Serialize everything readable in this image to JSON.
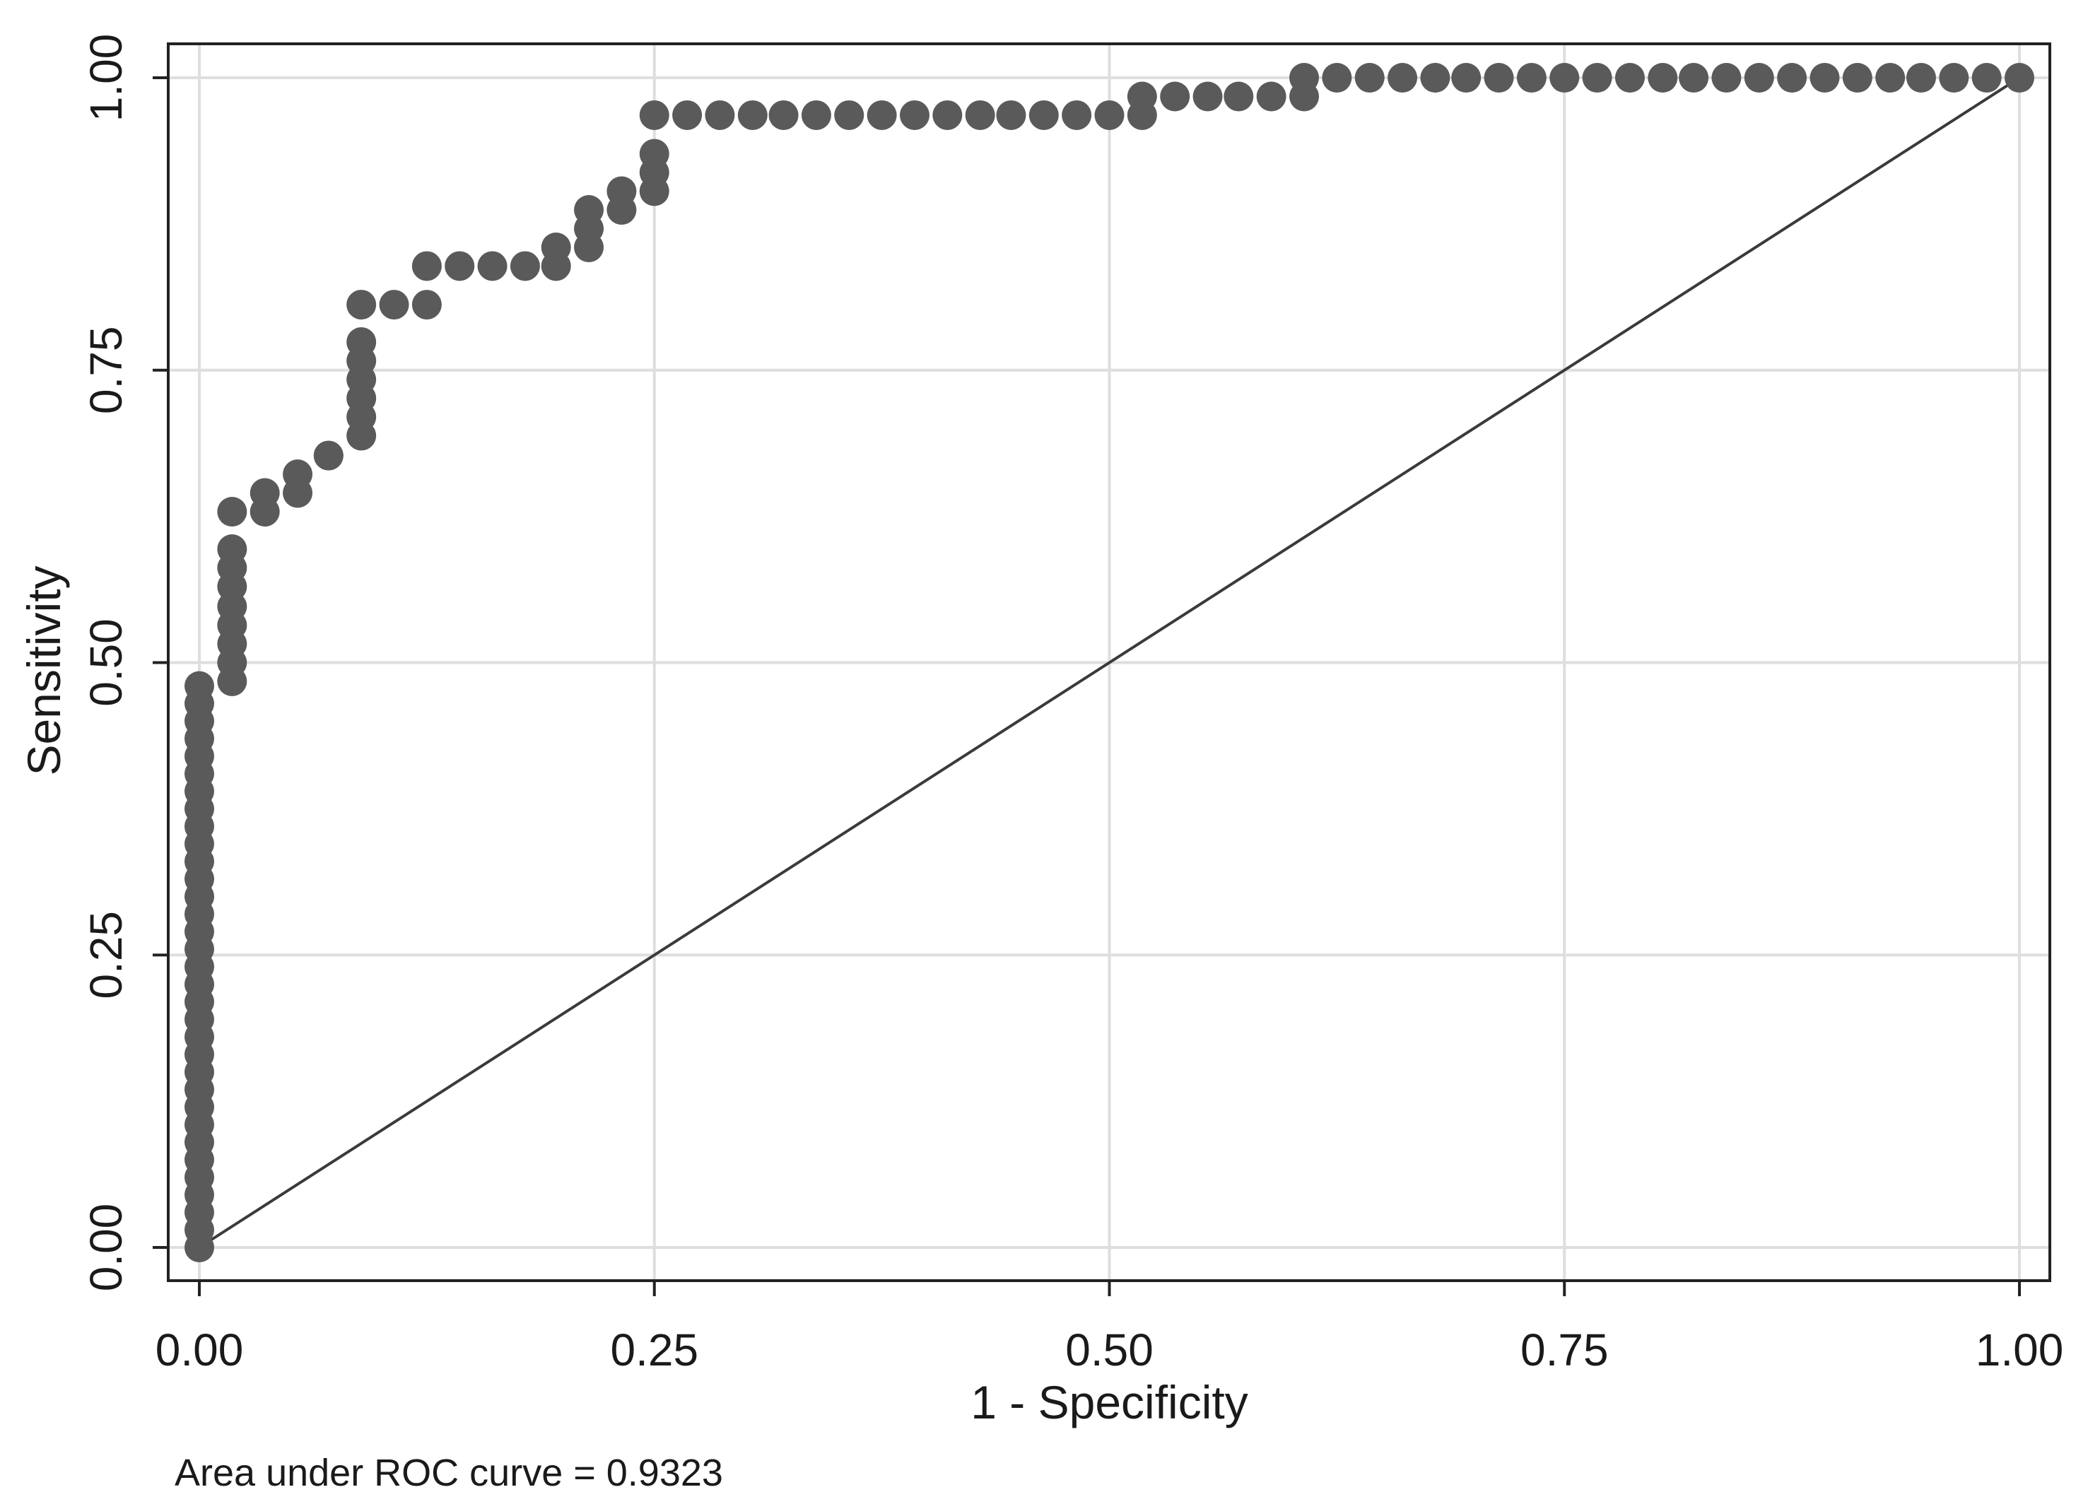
{
  "chart_data": {
    "type": "scatter",
    "xlabel": "1 - Specificity",
    "ylabel": "Sensitivity",
    "xlim": [
      0,
      1
    ],
    "ylim": [
      0,
      1
    ],
    "x_ticks": [
      "0.00",
      "0.25",
      "0.50",
      "0.75",
      "1.00"
    ],
    "y_ticks": [
      "0.00",
      "0.25",
      "0.50",
      "0.75",
      "1.00"
    ],
    "grid": true,
    "legend": "none",
    "note": "Area under ROC curve = 0.9323",
    "colors": {
      "points": "#5a5a5a",
      "reference_line": "#3a3a3a",
      "grid": "#dedede",
      "frame": "#222222"
    },
    "reference_line": {
      "x": [
        0,
        1
      ],
      "y": [
        0,
        1
      ]
    },
    "series": [
      {
        "x": [
          0.0,
          0.0,
          0.0,
          0.0,
          0.0,
          0.0,
          0.0,
          0.0,
          0.0,
          0.0,
          0.0,
          0.0,
          0.0,
          0.0,
          0.0,
          0.0,
          0.0,
          0.0,
          0.0,
          0.0,
          0.0,
          0.0,
          0.0,
          0.0,
          0.0,
          0.0,
          0.0,
          0.0,
          0.0,
          0.0,
          0.0,
          0.0,
          0.0,
          0.018,
          0.018,
          0.018,
          0.018,
          0.018,
          0.018,
          0.018,
          0.018,
          0.018,
          0.036,
          0.036,
          0.054,
          0.054,
          0.071,
          0.071,
          0.089,
          0.089,
          0.089,
          0.089,
          0.089,
          0.089,
          0.089,
          0.107,
          0.125,
          0.125,
          0.143,
          0.161,
          0.179,
          0.196,
          0.196,
          0.214,
          0.214,
          0.214,
          0.232,
          0.232,
          0.25,
          0.25,
          0.25,
          0.25,
          0.268,
          0.286,
          0.304,
          0.321,
          0.339,
          0.357,
          0.375,
          0.393,
          0.411,
          0.429,
          0.446,
          0.464,
          0.482,
          0.5,
          0.518,
          0.518,
          0.536,
          0.554,
          0.571,
          0.589,
          0.607,
          0.607,
          0.625,
          0.643,
          0.661,
          0.679,
          0.696,
          0.714,
          0.732,
          0.75,
          0.768,
          0.786,
          0.804,
          0.821,
          0.839,
          0.857,
          0.875,
          0.893,
          0.911,
          0.929,
          0.946,
          0.964,
          0.982,
          1.0
        ],
        "y": [
          0.0,
          0.015,
          0.03,
          0.045,
          0.06,
          0.075,
          0.09,
          0.105,
          0.12,
          0.135,
          0.15,
          0.165,
          0.18,
          0.195,
          0.21,
          0.225,
          0.24,
          0.255,
          0.27,
          0.285,
          0.3,
          0.315,
          0.33,
          0.345,
          0.36,
          0.375,
          0.39,
          0.405,
          0.42,
          0.435,
          0.45,
          0.465,
          0.48,
          0.484,
          0.5,
          0.516,
          0.532,
          0.548,
          0.565,
          0.581,
          0.597,
          0.629,
          0.629,
          0.645,
          0.645,
          0.661,
          0.677,
          0.677,
          0.694,
          0.71,
          0.726,
          0.742,
          0.758,
          0.774,
          0.806,
          0.806,
          0.806,
          0.839,
          0.839,
          0.839,
          0.839,
          0.839,
          0.855,
          0.855,
          0.871,
          0.887,
          0.887,
          0.903,
          0.903,
          0.919,
          0.935,
          0.968,
          0.968,
          0.968,
          0.968,
          0.968,
          0.968,
          0.968,
          0.968,
          0.968,
          0.968,
          0.968,
          0.968,
          0.968,
          0.968,
          0.968,
          0.968,
          0.984,
          0.984,
          0.984,
          0.984,
          0.984,
          0.984,
          1.0,
          1.0,
          1.0,
          1.0,
          1.0,
          1.0,
          1.0,
          1.0,
          1.0,
          1.0,
          1.0,
          1.0,
          1.0,
          1.0,
          1.0,
          1.0,
          1.0,
          1.0,
          1.0,
          1.0,
          1.0,
          1.0,
          1.0
        ]
      }
    ]
  }
}
